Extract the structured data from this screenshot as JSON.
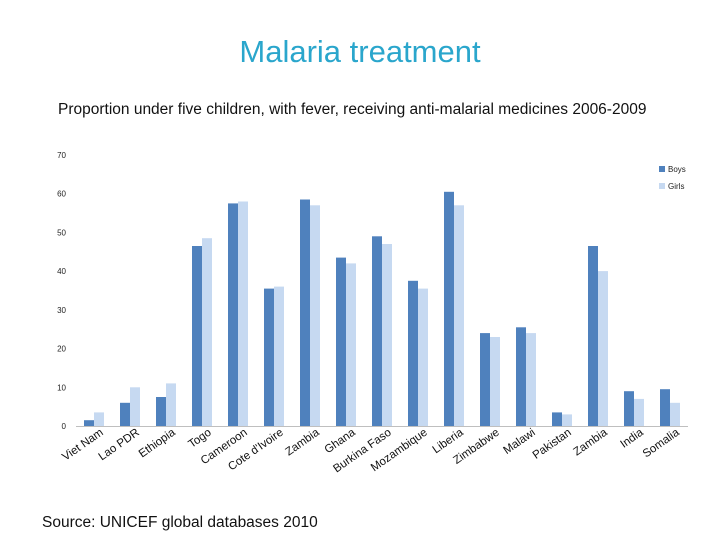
{
  "slide": {
    "title": "Malaria treatment",
    "subtitle": "Proportion under five children, with fever, receiving anti-malarial medicines 2006-2009",
    "source": "Source: UNICEF global databases 2010"
  },
  "chart_data": {
    "type": "bar",
    "title": "Proportion under five children, with fever, receiving anti-malarial medicines 2006-2009",
    "xlabel": "",
    "ylabel": "",
    "ylim": [
      0,
      70
    ],
    "yticks": [
      0,
      10,
      20,
      30,
      40,
      50,
      60,
      70
    ],
    "grid": false,
    "legend_position": "right",
    "categories": [
      "Viet Nam",
      "Lao PDR",
      "Ethiopia",
      "Togo",
      "Cameroon",
      "Cote d'Ivoire",
      "Zambia",
      "Ghana",
      "Burkina Faso",
      "Mozambique",
      "Liberia",
      "Zimbabwe",
      "Malawi",
      "Pakistan",
      "Zambia",
      "India",
      "Somalia"
    ],
    "series": [
      {
        "name": "Boys",
        "color": "#4f81bd",
        "values": [
          1.5,
          6,
          7.5,
          46.5,
          57.5,
          35.5,
          58.5,
          43.5,
          49,
          37.5,
          60.5,
          24,
          25.5,
          3.5,
          46.5,
          9,
          9.5
        ]
      },
      {
        "name": "Girls",
        "color": "#c6d9f1",
        "values": [
          3.5,
          10,
          11,
          48.5,
          58,
          36,
          57,
          42,
          47,
          35.5,
          57,
          23,
          24,
          3,
          40,
          7,
          6
        ]
      }
    ]
  }
}
